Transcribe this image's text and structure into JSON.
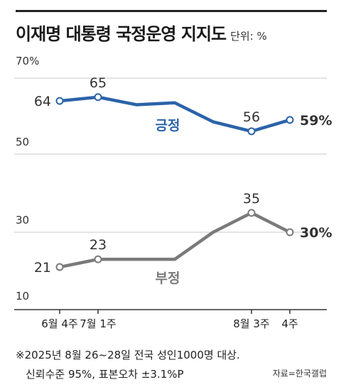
{
  "title": "이재명 대통령 국정운영 지지도",
  "unit": "단위: %",
  "footnote_1": "※2025년 8월 26~28일 전국 성인1000명 대상.",
  "footnote_2": "신뢰수준 95%, 표본오차 ±3.1%P",
  "source": "자료=한국갤럽",
  "colors": {
    "approve": "#2b63a8",
    "disapprove": "#7a7a7a",
    "grid": "#c8c8c8"
  },
  "chart_data": {
    "type": "line",
    "x_tick_labels": [
      "6월 4주",
      "7월 1주",
      "8월 3주",
      "4주"
    ],
    "y_tick_labels": [
      "70%",
      "50",
      "30",
      "10"
    ],
    "panels": [
      {
        "ylim": [
          50,
          70
        ],
        "series_key": "approve"
      },
      {
        "ylim": [
          10,
          30
        ],
        "series_key": "disapprove"
      }
    ],
    "series": [
      {
        "key": "approve",
        "name": "긍정",
        "color": "#2b63a8",
        "values": [
          64,
          65,
          63,
          63.5,
          58.5,
          56,
          59
        ],
        "labels": [
          "64",
          "65",
          "",
          "",
          "",
          "56",
          "59%"
        ]
      },
      {
        "key": "disapprove",
        "name": "부정",
        "color": "#7a7a7a",
        "values": [
          21,
          23,
          23,
          23,
          30,
          35,
          30
        ],
        "labels": [
          "21",
          "23",
          "",
          "",
          "",
          "35",
          "30%"
        ]
      }
    ]
  }
}
